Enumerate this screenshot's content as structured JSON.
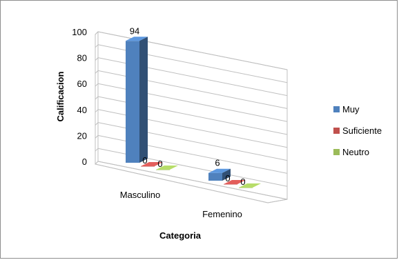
{
  "chart_data": {
    "type": "bar",
    "categories": [
      "Masculino",
      "Femenino"
    ],
    "series": [
      {
        "name": "Muy",
        "values": [
          94,
          6
        ],
        "color": "#4f81bd"
      },
      {
        "name": "Suficiente",
        "values": [
          0,
          0
        ],
        "color": "#c0504d"
      },
      {
        "name": "Neutro",
        "values": [
          0,
          0
        ],
        "color": "#9bbb59"
      }
    ],
    "data_labels": [
      [
        "94",
        "6"
      ],
      [
        "0",
        "0"
      ],
      [
        "0",
        "0"
      ]
    ],
    "title": "",
    "xlabel": "Categoria",
    "ylabel": "Calificacion",
    "ylim": [
      0,
      100
    ],
    "yticks": [
      0,
      20,
      40,
      60,
      80,
      100
    ],
    "grid": true,
    "legend_position": "right",
    "style": "3d-clustered-column"
  }
}
